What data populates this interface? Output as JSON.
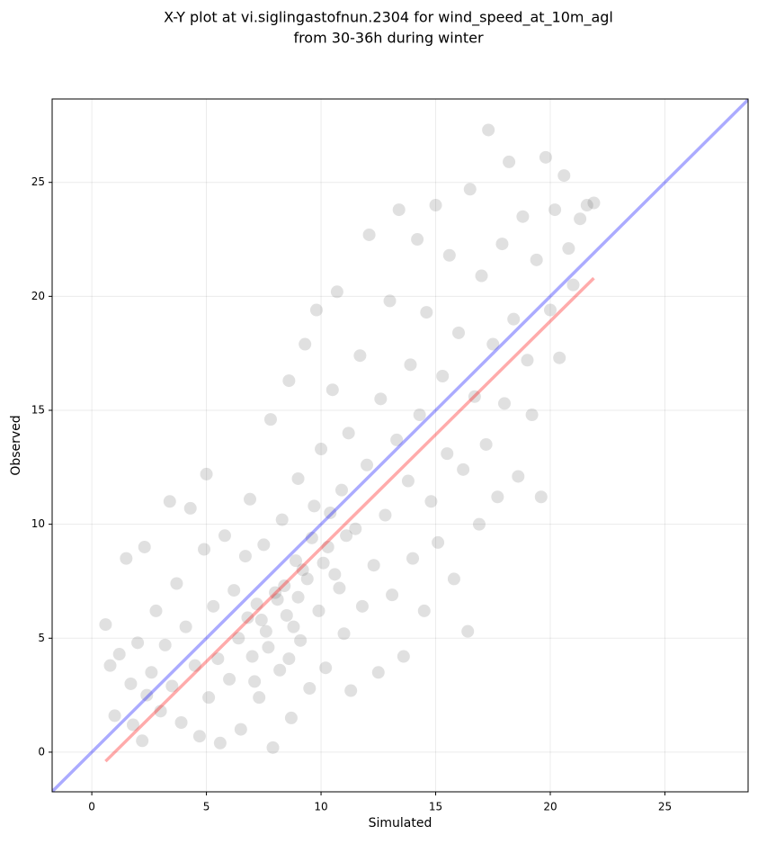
{
  "chart_data": {
    "type": "scatter",
    "title": [
      "X-Y plot at vi.siglingastofnun.2304 for wind_speed_at_10m_agl",
      "from 30-36h during winter"
    ],
    "xlabel": "Simulated",
    "ylabel": "Observed",
    "xlim": [
      -1.73,
      28.63
    ],
    "ylim": [
      -1.74,
      28.66
    ],
    "xticks": [
      0,
      5,
      10,
      15,
      20,
      25
    ],
    "yticks": [
      0,
      5,
      10,
      15,
      20,
      25
    ],
    "grid": true,
    "points": {
      "color": "#555555",
      "x": [
        0.6,
        0.8,
        1.0,
        1.2,
        1.5,
        1.7,
        1.8,
        2.0,
        2.2,
        2.3,
        2.4,
        2.6,
        2.8,
        3.0,
        3.2,
        3.4,
        3.5,
        3.7,
        3.9,
        4.1,
        4.3,
        4.5,
        4.7,
        4.9,
        5.0,
        5.1,
        5.3,
        5.5,
        5.6,
        5.8,
        6.0,
        6.2,
        6.4,
        6.5,
        6.7,
        6.9,
        7.0,
        7.2,
        7.3,
        7.5,
        7.6,
        7.8,
        7.9,
        8.0,
        8.2,
        8.3,
        8.5,
        8.6,
        8.7,
        8.9,
        9.0,
        9.1,
        9.3,
        9.4,
        9.5,
        9.7,
        9.8,
        9.9,
        10.0,
        10.2,
        10.3,
        10.5,
        10.6,
        10.7,
        10.9,
        11.0,
        11.2,
        11.3,
        11.5,
        11.7,
        11.8,
        12.0,
        12.1,
        12.3,
        12.5,
        12.6,
        12.8,
        13.0,
        13.1,
        13.3,
        13.4,
        13.6,
        13.8,
        13.9,
        14.0,
        14.2,
        14.3,
        14.5,
        14.6,
        14.8,
        15.0,
        15.1,
        15.3,
        15.5,
        15.6,
        15.8,
        16.0,
        16.2,
        16.4,
        16.5,
        16.7,
        16.9,
        17.0,
        17.2,
        17.3,
        17.5,
        17.7,
        17.9,
        18.0,
        18.2,
        18.4,
        18.6,
        18.8,
        19.0,
        19.2,
        19.4,
        19.6,
        19.8,
        20.0,
        20.2,
        20.4,
        20.6,
        20.8,
        21.0,
        21.3,
        21.6,
        21.9,
        7.4,
        8.1,
        8.4,
        8.8,
        9.2,
        7.7,
        9.6,
        10.1,
        6.8,
        10.4,
        11.1,
        7.1,
        9.0,
        8.6,
        10.8
      ],
      "y": [
        5.6,
        3.8,
        1.6,
        4.3,
        8.5,
        3.0,
        1.2,
        4.8,
        0.5,
        9.0,
        2.5,
        3.5,
        6.2,
        1.8,
        4.7,
        11.0,
        2.9,
        7.4,
        1.3,
        5.5,
        10.7,
        3.8,
        0.7,
        8.9,
        12.2,
        2.4,
        6.4,
        4.1,
        0.4,
        9.5,
        3.2,
        7.1,
        5.0,
        1.0,
        8.6,
        11.1,
        4.2,
        6.5,
        2.4,
        9.1,
        5.3,
        14.6,
        0.2,
        7.0,
        3.6,
        10.2,
        6.0,
        16.3,
        1.5,
        8.4,
        12.0,
        4.9,
        17.9,
        7.6,
        2.8,
        10.8,
        19.4,
        6.2,
        13.3,
        3.7,
        9.0,
        15.9,
        7.8,
        20.2,
        11.5,
        5.2,
        14.0,
        2.7,
        9.8,
        17.4,
        6.4,
        12.6,
        22.7,
        8.2,
        3.5,
        15.5,
        10.4,
        19.8,
        6.9,
        13.7,
        23.8,
        4.2,
        11.9,
        17.0,
        8.5,
        22.5,
        14.8,
        6.2,
        19.3,
        11.0,
        24.0,
        9.2,
        16.5,
        13.1,
        21.8,
        7.6,
        18.4,
        12.4,
        5.3,
        24.7,
        15.6,
        10.0,
        20.9,
        13.5,
        27.3,
        17.9,
        11.2,
        22.3,
        15.3,
        25.9,
        19.0,
        12.1,
        23.5,
        17.2,
        14.8,
        21.6,
        11.2,
        26.1,
        19.4,
        23.8,
        17.3,
        25.3,
        22.1,
        20.5,
        23.4,
        24.0,
        24.1,
        5.8,
        6.7,
        7.3,
        5.5,
        8.0,
        4.6,
        9.4,
        8.3,
        5.9,
        10.5,
        9.5,
        3.1,
        6.8,
        4.1,
        7.2
      ]
    },
    "lines": [
      {
        "color": "#0000ff",
        "x": [
          -1.73,
          28.63
        ],
        "y": [
          -1.73,
          28.63
        ]
      },
      {
        "color": "#ff0000",
        "x": [
          0.6,
          21.9
        ],
        "y": [
          -0.4,
          20.8
        ]
      }
    ]
  }
}
